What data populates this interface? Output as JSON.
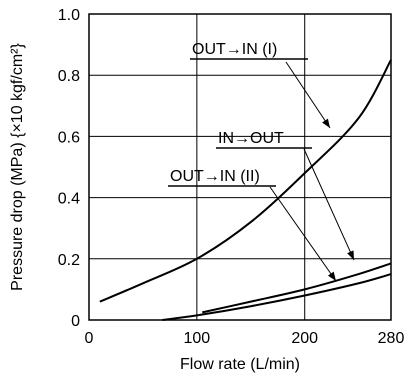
{
  "chart_data": {
    "type": "line",
    "xlabel": "Flow rate (L/min)",
    "ylabel": "Pressure drop (MPa) {×10 kgf/cm²}",
    "xlim": [
      0,
      280
    ],
    "ylim": [
      0,
      1.0
    ],
    "x_ticks": [
      0,
      100,
      200,
      280
    ],
    "x_tick_labels": [
      "0",
      "100",
      "200",
      "280"
    ],
    "y_ticks": [
      0,
      0.2,
      0.4,
      0.6,
      0.8,
      1.0
    ],
    "y_tick_labels": [
      "0",
      "0.2",
      "0.4",
      "0.6",
      "0.8",
      "1.0"
    ],
    "grid": true,
    "legend": "none",
    "series": [
      {
        "name": "OUT→IN (I)",
        "x": [
          10,
          50,
          100,
          150,
          200,
          250,
          280
        ],
        "y": [
          0.06,
          0.12,
          0.2,
          0.32,
          0.48,
          0.66,
          0.85
        ]
      },
      {
        "name": "IN→OUT",
        "x": [
          105,
          150,
          200,
          250,
          280
        ],
        "y": [
          0.025,
          0.06,
          0.1,
          0.15,
          0.185
        ]
      },
      {
        "name": "OUT→IN (II)",
        "x": [
          68,
          100,
          150,
          200,
          250,
          280
        ],
        "y": [
          0,
          0.015,
          0.045,
          0.08,
          0.12,
          0.15
        ]
      }
    ],
    "annotations": [
      {
        "label": "OUT→IN (I)",
        "series": 0
      },
      {
        "label": "IN→OUT",
        "series": 1
      },
      {
        "label": "OUT→IN (II)",
        "series": 2
      }
    ]
  }
}
